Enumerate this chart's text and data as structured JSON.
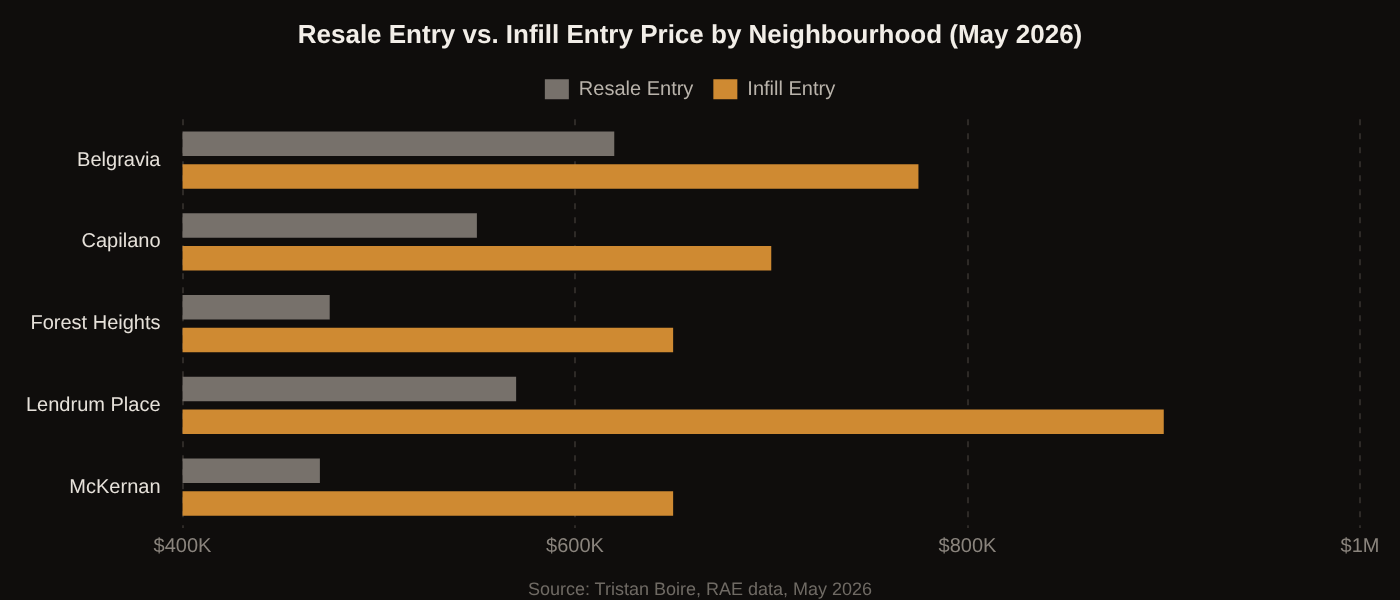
{
  "chart_data": {
    "type": "bar",
    "orientation": "horizontal",
    "title": "Resale Entry vs. Infill Entry Price by Neighbourhood (May 2026)",
    "categories": [
      "Belgravia",
      "Capilano",
      "Forest Heights",
      "Lendrum Place",
      "McKernan"
    ],
    "series": [
      {
        "name": "Resale Entry",
        "color": "#77716b",
        "values": [
          620000,
          550000,
          475000,
          570000,
          470000
        ]
      },
      {
        "name": "Infill Entry",
        "color": "#cf8a32",
        "values": [
          775000,
          700000,
          650000,
          900000,
          650000
        ]
      }
    ],
    "xlim": [
      400000,
      1000000
    ],
    "xticks": [
      {
        "value": 400000,
        "label": "$400K"
      },
      {
        "value": 600000,
        "label": "$600K"
      },
      {
        "value": 800000,
        "label": "$800K"
      },
      {
        "value": 1000000,
        "label": "$1M"
      }
    ],
    "grid": "x",
    "legend": "top",
    "annotations": [
      "Source: Tristan Boire, RAE data, May 2026"
    ]
  }
}
